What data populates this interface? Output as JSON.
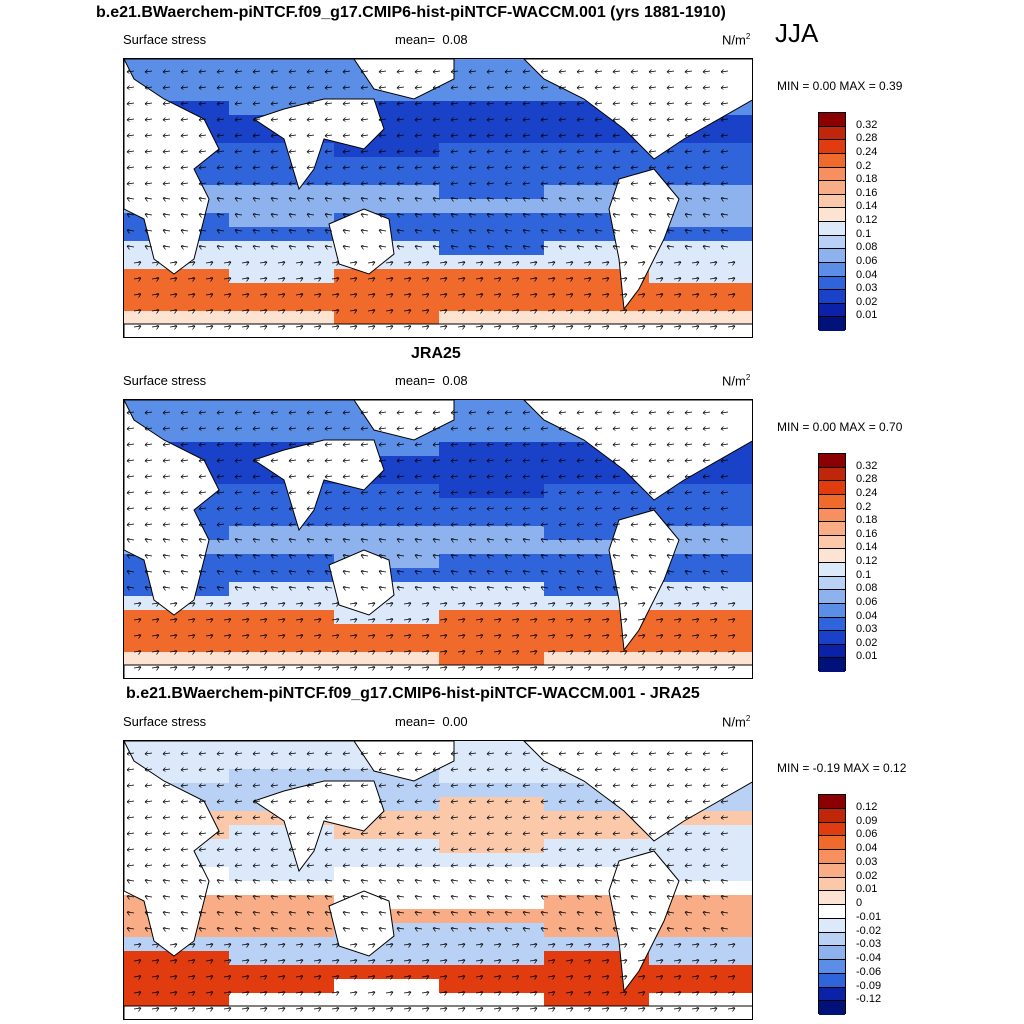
{
  "figure_title": "b.e21.BWaerchem-piNTCF.f09_g17.CMIP6-hist-piNTCF-WACCM.001 (yrs 1881-1910)",
  "season": "JJA",
  "panels": [
    {
      "title": "",
      "variable": "Surface stress",
      "mean_label": "mean=",
      "mean_value": "0.08",
      "units": "N/m",
      "units_exp": "2",
      "minmax": "MIN =   0.00 MAX =   0.39",
      "levels": [
        "0.32",
        "0.28",
        "0.24",
        "0.2",
        "0.18",
        "0.16",
        "0.14",
        "0.12",
        "0.1",
        "0.08",
        "0.06",
        "0.04",
        "0.03",
        "0.02",
        "0.01"
      ],
      "colors": [
        "#8b0000",
        "#c0260a",
        "#e03c10",
        "#f06a2c",
        "#f7905e",
        "#f9ad86",
        "#fbc9aa",
        "#fde4d2",
        "#dce9fb",
        "#b9d1f5",
        "#8db2ee",
        "#5b8ee6",
        "#2f64db",
        "#1a42c8",
        "#0b22a8",
        "#00127a"
      ]
    },
    {
      "title": "JRA25",
      "variable": "Surface stress",
      "mean_label": "mean=",
      "mean_value": "0.08",
      "units": "N/m",
      "units_exp": "2",
      "minmax": "MIN =   0.00 MAX =   0.70",
      "levels": [
        "0.32",
        "0.28",
        "0.24",
        "0.2",
        "0.18",
        "0.16",
        "0.14",
        "0.12",
        "0.1",
        "0.08",
        "0.06",
        "0.04",
        "0.03",
        "0.02",
        "0.01"
      ],
      "colors": [
        "#8b0000",
        "#c0260a",
        "#e03c10",
        "#f06a2c",
        "#f7905e",
        "#f9ad86",
        "#fbc9aa",
        "#fde4d2",
        "#dce9fb",
        "#b9d1f5",
        "#8db2ee",
        "#5b8ee6",
        "#2f64db",
        "#1a42c8",
        "#0b22a8",
        "#00127a"
      ]
    },
    {
      "title": "b.e21.BWaerchem-piNTCF.f09_g17.CMIP6-hist-piNTCF-WACCM.001 - JRA25",
      "variable": "Surface stress",
      "mean_label": "mean=",
      "mean_value": "0.00",
      "units": "N/m",
      "units_exp": "2",
      "minmax": "MIN = -0.19 MAX =   0.12",
      "levels": [
        "0.12",
        "0.09",
        "0.06",
        "0.04",
        "0.03",
        "0.02",
        "0.01",
        "0",
        "-0.01",
        "-0.02",
        "-0.03",
        "-0.04",
        "-0.06",
        "-0.09",
        "-0.12"
      ],
      "colors": [
        "#8b0000",
        "#c0260a",
        "#e03c10",
        "#f06a2c",
        "#f7905e",
        "#f9ad86",
        "#fbc9aa",
        "#fde4d2",
        "#ffffff",
        "#dce9fb",
        "#b9d1f5",
        "#8db2ee",
        "#5b8ee6",
        "#2f64db",
        "#0b22a8",
        "#00127a"
      ]
    }
  ]
}
